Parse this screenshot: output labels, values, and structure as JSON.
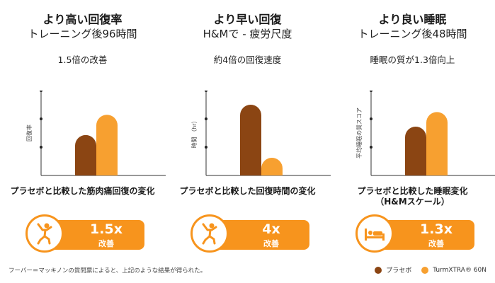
{
  "legend": {
    "placebo": "プラセボ",
    "product": "TurmXTRA® 60N",
    "colors": {
      "placebo": "#8b4513",
      "product": "#f7a030",
      "accent": "#f7941d"
    },
    "placement": "bottom-right"
  },
  "footnote": "フーバー＝マッキノンの質問票によると、上記のような結果が得られた。",
  "chart_data": [
    {
      "type": "bar",
      "title": "より高い回復率",
      "subtitle": "トレーニング後96時間",
      "highlight": "1.5倍の改善",
      "ylabel": "回復率",
      "categories": [
        "プラセボ",
        "TurmXTRA® 60N"
      ],
      "values": [
        1.0,
        1.5
      ],
      "ylim": [
        0,
        2.1
      ],
      "yticks": [
        0.7,
        1.4,
        2.1
      ],
      "caption": "プラセボと比較した筋肉痛回復の変化",
      "badge": {
        "value": "1.5x",
        "label": "改善",
        "icon": "stretching-person-icon"
      }
    },
    {
      "type": "bar",
      "title": "より早い回復",
      "subtitle": "H&Mで - 疲労尺度",
      "highlight": "約4倍の回復速度",
      "ylabel": "時間 （hr）",
      "categories": [
        "プラセボ",
        "TurmXTRA® 60N"
      ],
      "values": [
        4.0,
        1.0
      ],
      "ylim": [
        0,
        4.8
      ],
      "yticks": [
        1.6,
        3.2,
        4.8
      ],
      "caption": "プラセボと比較した回復時間の変化",
      "badge": {
        "value": "4x",
        "label": "改善",
        "icon": "stretching-person-icon"
      }
    },
    {
      "type": "bar",
      "title": "より良い睡眠",
      "subtitle": "トレーニング後48時間",
      "highlight": "睡眠の質が1.3倍向上",
      "ylabel": "平均睡眠の質スコア",
      "categories": [
        "プラセボ",
        "TurmXTRA® 60N"
      ],
      "values": [
        1.0,
        1.3
      ],
      "ylim": [
        0,
        1.74
      ],
      "yticks": [
        0.58,
        1.16,
        1.74
      ],
      "caption": "プラセボと比較した睡眠変化\n（H&Mスケール）",
      "badge": {
        "value": "1.3x",
        "label": "改善",
        "icon": "bed-icon"
      }
    }
  ]
}
